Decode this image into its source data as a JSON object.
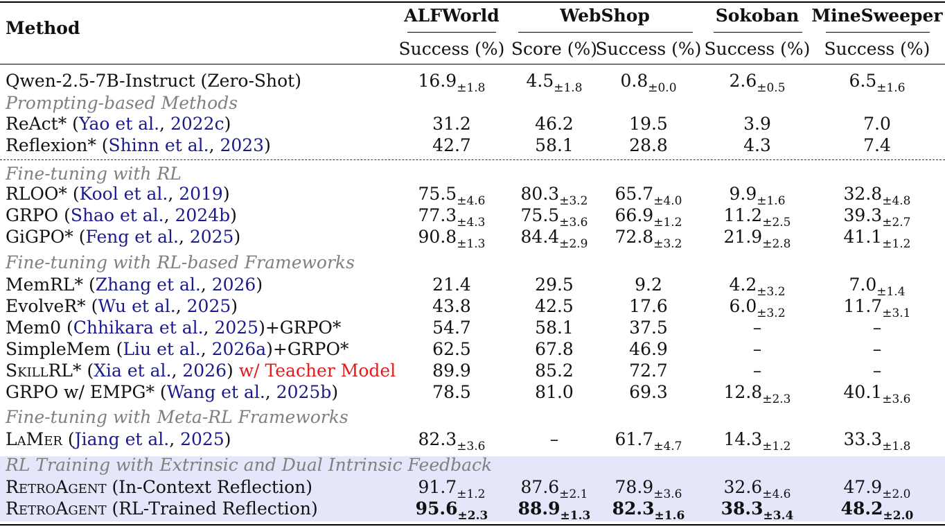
{
  "header": {
    "method_label": "Method",
    "groups": [
      {
        "label": "ALFWorld",
        "subcols": [
          "Success (%)"
        ]
      },
      {
        "label": "WebShop",
        "subcols": [
          "Score (%)",
          "Success (%)"
        ]
      },
      {
        "label": "Sokoban",
        "subcols": [
          "Success (%)"
        ]
      },
      {
        "label": "MineSweeper",
        "subcols": [
          "Success (%)"
        ]
      }
    ]
  },
  "rows": [
    {
      "type": "row",
      "method": "Qwen-2.5-7B-Instruct (Zero-Shot)",
      "cite": "",
      "year": "",
      "suffix": "",
      "vals": [
        [
          "16.9",
          "±1.8"
        ],
        [
          "4.5",
          "±1.8"
        ],
        [
          "0.8",
          "±0.0"
        ],
        [
          "2.6",
          "±0.5"
        ],
        [
          "6.5",
          "±1.6"
        ]
      ]
    },
    {
      "type": "section",
      "label": "Prompting-based Methods"
    },
    {
      "type": "row",
      "method": "ReAct*",
      "cite": "Yao et al.",
      "year": "2022c",
      "suffix": "",
      "vals": [
        [
          "31.2",
          ""
        ],
        [
          "46.2",
          ""
        ],
        [
          "19.5",
          ""
        ],
        [
          "3.9",
          ""
        ],
        [
          "7.0",
          ""
        ]
      ]
    },
    {
      "type": "row",
      "method": "Reflexion*",
      "cite": "Shinn et al.",
      "year": "2023",
      "suffix": "",
      "vals": [
        [
          "42.7",
          ""
        ],
        [
          "58.1",
          ""
        ],
        [
          "28.8",
          ""
        ],
        [
          "4.3",
          ""
        ],
        [
          "7.4",
          ""
        ]
      ]
    },
    {
      "type": "section",
      "label": "Fine-tuning with RL"
    },
    {
      "type": "row",
      "method": "RLOO*",
      "cite": "Kool et al.",
      "year": "2019",
      "suffix": "",
      "vals": [
        [
          "75.5",
          "±4.6"
        ],
        [
          "80.3",
          "±3.2"
        ],
        [
          "65.7",
          "±4.0"
        ],
        [
          "9.9",
          "±1.6"
        ],
        [
          "32.8",
          "±4.8"
        ]
      ]
    },
    {
      "type": "row",
      "method": "GRPO",
      "cite": "Shao et al.",
      "year": "2024b",
      "suffix": "",
      "vals": [
        [
          "77.3",
          "±4.3"
        ],
        [
          "75.5",
          "±3.6"
        ],
        [
          "66.9",
          "±1.2"
        ],
        [
          "11.2",
          "±2.5"
        ],
        [
          "39.3",
          "±2.7"
        ]
      ]
    },
    {
      "type": "row",
      "method": "GiGPO*",
      "cite": "Feng et al.",
      "year": "2025",
      "suffix": "",
      "vals": [
        [
          "90.8",
          "±1.3"
        ],
        [
          "84.4",
          "±2.9"
        ],
        [
          "72.8",
          "±3.2"
        ],
        [
          "21.9",
          "±2.8"
        ],
        [
          "41.1",
          "±1.2"
        ]
      ]
    },
    {
      "type": "section",
      "label": "Fine-tuning with RL-based Frameworks"
    },
    {
      "type": "row",
      "method": "MemRL*",
      "cite": "Zhang et al.",
      "year": "2026",
      "suffix": "",
      "vals": [
        [
          "21.4",
          ""
        ],
        [
          "29.5",
          ""
        ],
        [
          "9.2",
          ""
        ],
        [
          "4.2",
          "±3.2"
        ],
        [
          "7.0",
          "±1.4"
        ]
      ]
    },
    {
      "type": "row",
      "method": "EvolveR*",
      "cite": "Wu et al.",
      "year": "2025",
      "suffix": "",
      "vals": [
        [
          "43.8",
          ""
        ],
        [
          "42.5",
          ""
        ],
        [
          "17.6",
          ""
        ],
        [
          "6.0",
          "±3.2"
        ],
        [
          "11.7",
          "±3.1"
        ]
      ]
    },
    {
      "type": "row",
      "method": "Mem0",
      "cite": "Chhikara et al.",
      "year": "2025",
      "suffix": "+GRPO*",
      "vals": [
        [
          "54.7",
          ""
        ],
        [
          "58.1",
          ""
        ],
        [
          "37.5",
          ""
        ],
        [
          "–",
          ""
        ],
        [
          "–",
          ""
        ]
      ]
    },
    {
      "type": "row",
      "method": "SimpleMem",
      "cite": "Liu et al.",
      "year": "2026a",
      "suffix": "+GRPO*",
      "vals": [
        [
          "62.5",
          ""
        ],
        [
          "67.8",
          ""
        ],
        [
          "46.9",
          ""
        ],
        [
          "–",
          ""
        ],
        [
          "–",
          ""
        ]
      ]
    },
    {
      "type": "row",
      "method": "SkillRL*",
      "cite": "Xia et al.",
      "year": "2026",
      "suffix": "w/ Teacher Model",
      "vals": [
        [
          "89.9",
          ""
        ],
        [
          "85.2",
          ""
        ],
        [
          "72.7",
          ""
        ],
        [
          "–",
          ""
        ],
        [
          "–",
          ""
        ]
      ]
    },
    {
      "type": "row",
      "method": "GRPO w/ EMPG*",
      "cite": "Wang et al.",
      "year": "2025b",
      "suffix": "",
      "vals": [
        [
          "78.5",
          ""
        ],
        [
          "81.0",
          ""
        ],
        [
          "69.3",
          ""
        ],
        [
          "12.8",
          "±2.3"
        ],
        [
          "40.1",
          "±3.6"
        ]
      ]
    },
    {
      "type": "section",
      "label": "Fine-tuning with Meta-RL Frameworks"
    },
    {
      "type": "row",
      "method": "LaMer",
      "cite": "Jiang et al.",
      "year": "2025",
      "suffix": "",
      "vals": [
        [
          "82.3",
          "±3.6"
        ],
        [
          "–",
          ""
        ],
        [
          "61.7",
          "±4.7"
        ],
        [
          "14.3",
          "±1.2"
        ],
        [
          "33.3",
          "±1.8"
        ]
      ]
    },
    {
      "type": "section",
      "label": "RL Training with Extrinsic and Dual Intrinsic Feedback"
    },
    {
      "type": "row",
      "method": "RetroAgent",
      "cite": "",
      "year": "",
      "suffix": "(In-Context Reflection)",
      "vals": [
        [
          "91.7",
          "±1.2"
        ],
        [
          "87.6",
          "±2.1"
        ],
        [
          "78.9",
          "±3.6"
        ],
        [
          "32.6",
          "±4.6"
        ],
        [
          "47.9",
          "±2.0"
        ]
      ]
    },
    {
      "type": "row",
      "method": "RetroAgent",
      "cite": "",
      "year": "",
      "suffix": "(RL-Trained Reflection)",
      "vals": [
        [
          "95.6",
          "±2.3"
        ],
        [
          "88.9",
          "±1.3"
        ],
        [
          "82.3",
          "±1.6"
        ],
        [
          "38.3",
          "±3.4"
        ],
        [
          "48.2",
          "±2.0"
        ]
      ]
    }
  ],
  "colors": {
    "citation": "#1a1a8c",
    "section": "#7f7f7f",
    "highlight": "#e6e6fa",
    "teacher_note": "#e41a1c"
  }
}
